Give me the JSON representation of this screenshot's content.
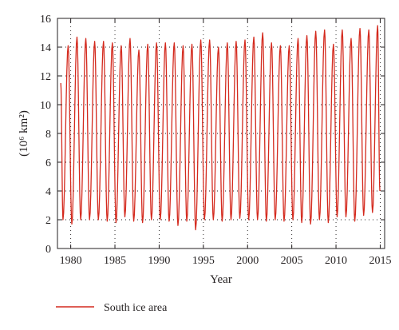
{
  "chart_data": {
    "type": "line",
    "xlabel": "Year",
    "ylabel": "(10⁶ km²)",
    "xlim": [
      1978.5,
      2015.5
    ],
    "ylim": [
      0,
      16
    ],
    "x_ticks": [
      1980,
      1985,
      1990,
      1995,
      2000,
      2005,
      2010,
      2015
    ],
    "y_ticks": [
      0,
      2,
      4,
      6,
      8,
      10,
      12,
      14,
      16
    ],
    "grid": true,
    "legend_position": "bottom-left",
    "series": [
      {
        "name": "South ice area",
        "color": "#d42a1e",
        "sampling": "monthly, first value in Nov 1978",
        "start_value": 11.5,
        "end_value": 4.0,
        "annual_max": [
          14.1,
          14.7,
          14.6,
          14.4,
          14.4,
          14.3,
          14.1,
          14.6,
          13.8,
          14.2,
          14.3,
          14.3,
          14.3,
          14.1,
          14.2,
          14.5,
          14.5,
          14.0,
          14.3,
          14.4,
          14.5,
          14.7,
          15.0,
          14.3,
          14.1,
          14.1,
          14.6,
          14.8,
          15.1,
          15.2,
          14.2,
          15.2,
          14.6,
          15.3,
          15.2,
          15.5
        ],
        "annual_min": [
          2.0,
          1.7,
          2.0,
          2.0,
          2.0,
          1.9,
          1.8,
          2.2,
          1.9,
          1.8,
          2.0,
          2.0,
          1.9,
          1.6,
          1.9,
          1.3,
          2.0,
          2.0,
          1.9,
          2.0,
          2.1,
          2.0,
          2.0,
          1.9,
          2.0,
          1.9,
          2.0,
          1.8,
          1.7,
          2.0,
          1.8,
          2.2,
          2.2,
          1.9,
          2.3,
          2.5,
          2.8
        ]
      }
    ]
  }
}
